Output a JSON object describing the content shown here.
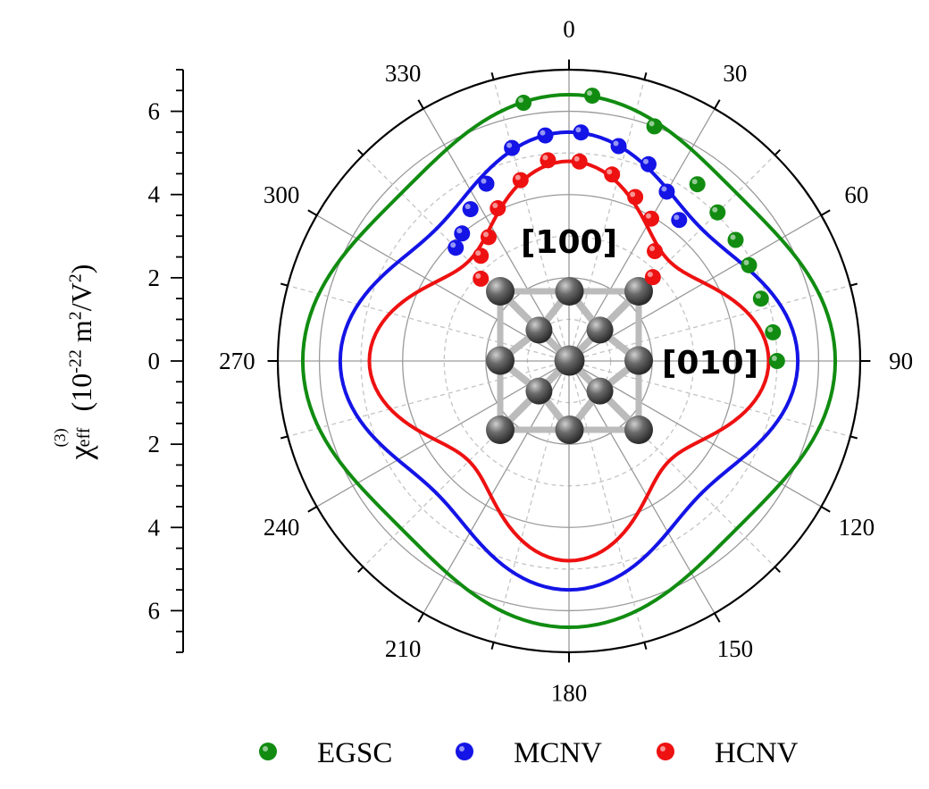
{
  "chart_data": {
    "type": "polar",
    "title": "",
    "ylabel": {
      "symbol": "χ",
      "superscript": "(3)",
      "subscript": "eff",
      "units_prefix": "(10",
      "units_exp1": "-22",
      "units_mid": " m",
      "units_exp2": "2",
      "units_mid2": "/V",
      "units_exp3": "2",
      "units_suffix": ")"
    },
    "radial_range": [
      0,
      7
    ],
    "radial_ticks": [
      6,
      4,
      2,
      0,
      2,
      4,
      6
    ],
    "angular_ticks": [
      "0",
      "30",
      "60",
      "90",
      "120",
      "150",
      "180",
      "210",
      "240",
      "270",
      "300",
      "330"
    ],
    "annotations": [
      "[100]",
      "[010]"
    ],
    "legend_position": "bottom",
    "series": [
      {
        "name": "EGSC",
        "color": "#118c11",
        "curve_params": {
          "a": 5.7,
          "b": 0.7
        },
        "points": [
          [
            -10,
            6.3
          ],
          [
            5,
            6.4
          ],
          [
            20,
            6.0
          ],
          [
            36,
            5.25
          ],
          [
            45,
            5.05
          ],
          [
            54,
            4.95
          ],
          [
            62,
            4.9
          ],
          [
            72,
            4.85
          ],
          [
            82,
            4.95
          ],
          [
            90,
            5.0
          ]
        ]
      },
      {
        "name": "MCNV",
        "color": "#1414e6",
        "curve_params": {
          "a": 4.5,
          "b": 1.0
        },
        "points": [
          [
            -45,
            3.85
          ],
          [
            -40,
            4.0
          ],
          [
            -33,
            4.35
          ],
          [
            -25,
            4.7
          ],
          [
            -15,
            5.3
          ],
          [
            -6,
            5.45
          ],
          [
            3,
            5.5
          ],
          [
            13,
            5.3
          ],
          [
            22,
            5.1
          ],
          [
            30,
            4.7
          ],
          [
            38,
            4.3
          ]
        ]
      },
      {
        "name": "HCNV",
        "color": "#ee1111",
        "curve_params": {
          "a": 3.4,
          "b": 1.4
        },
        "points": [
          [
            -47,
            2.9
          ],
          [
            -40,
            3.3
          ],
          [
            -33,
            3.55
          ],
          [
            -25,
            4.05
          ],
          [
            -15,
            4.5
          ],
          [
            -6,
            4.85
          ],
          [
            3,
            4.8
          ],
          [
            13,
            4.6
          ],
          [
            22,
            4.25
          ],
          [
            30,
            3.95
          ],
          [
            38,
            3.35
          ],
          [
            45,
            2.85
          ]
        ]
      }
    ]
  }
}
